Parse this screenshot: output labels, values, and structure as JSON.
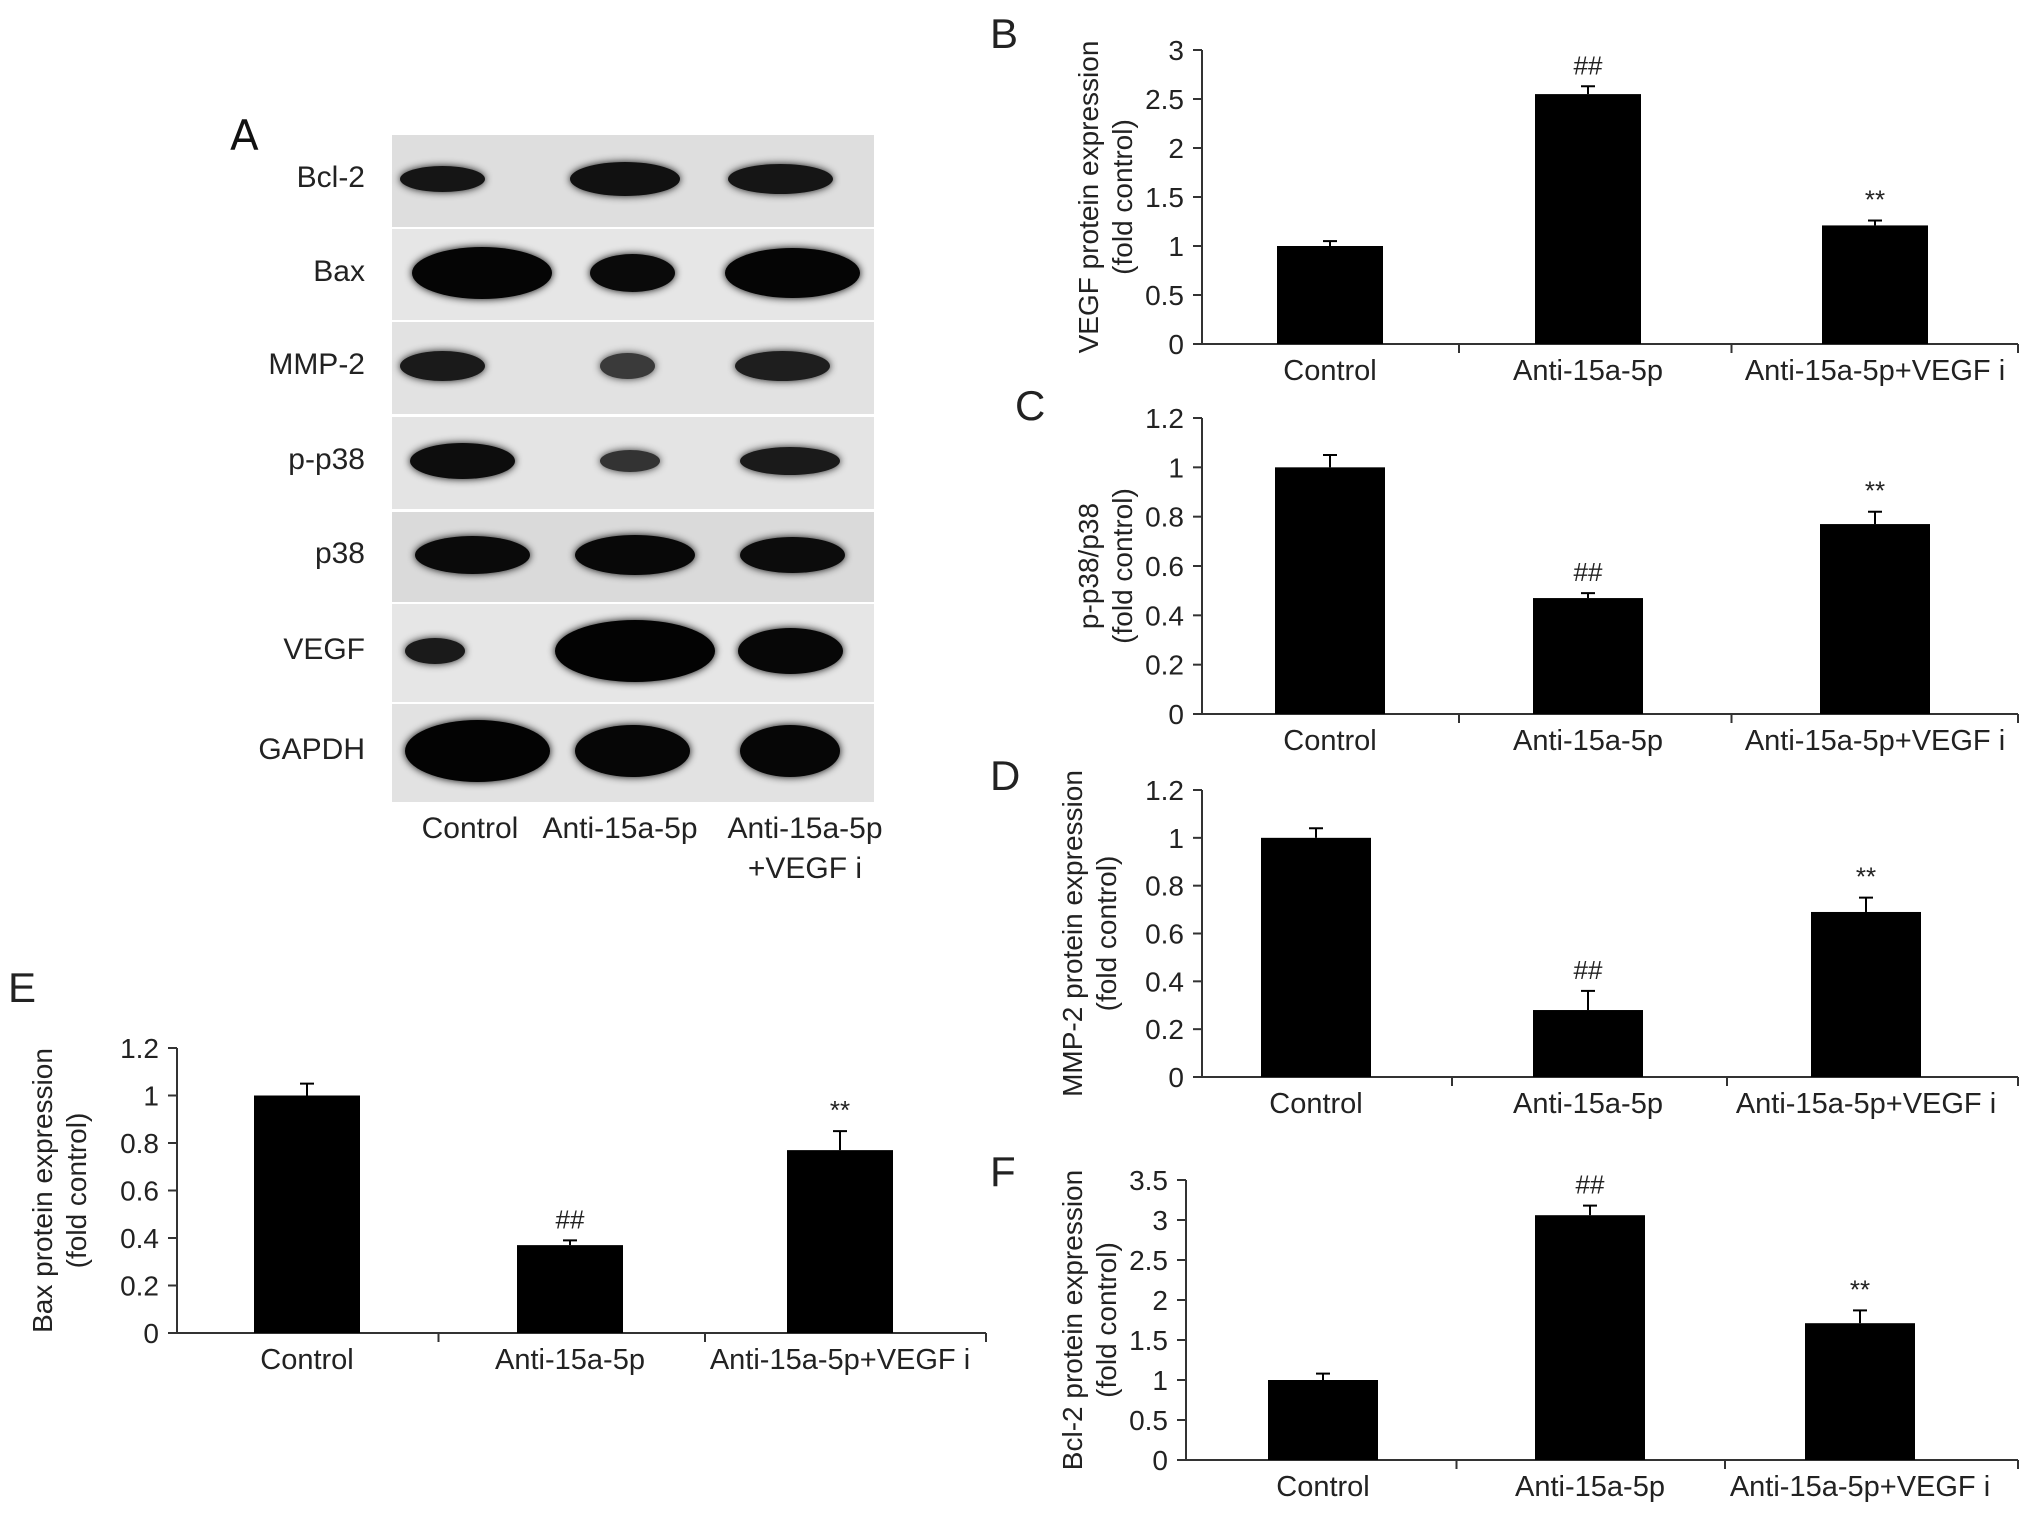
{
  "panel_a": {
    "letter": "A",
    "rows": [
      "Bcl-2",
      "Bax",
      "MMP-2",
      "p-p38",
      "p38",
      "VEGF",
      "GAPDH"
    ],
    "lanes": [
      "Control",
      "Anti-15a-5p",
      "Anti-15a-5p",
      "+VEGF i"
    ]
  },
  "chart_data": [
    {
      "panel": "B",
      "type": "bar",
      "categories": [
        "Control",
        "Anti-15a-5p",
        "Anti-15a-5p+VEGF i"
      ],
      "values": [
        1.0,
        2.55,
        1.21
      ],
      "errors": [
        0.05,
        0.08,
        0.05
      ],
      "annotations": [
        "",
        "##",
        "**"
      ],
      "ylabel": [
        "VEGF protein expression",
        "(fold control)"
      ],
      "yticks": [
        "0",
        "0.5",
        "1",
        "1.5",
        "2",
        "2.5",
        "3"
      ],
      "ylim": [
        0,
        3
      ]
    },
    {
      "panel": "C",
      "type": "bar",
      "categories": [
        "Control",
        "Anti-15a-5p",
        "Anti-15a-5p+VEGF i"
      ],
      "values": [
        1.0,
        0.47,
        0.77
      ],
      "errors": [
        0.05,
        0.02,
        0.05
      ],
      "annotations": [
        "",
        "##",
        "**"
      ],
      "ylabel": [
        "p-p38/p38",
        "(fold control)"
      ],
      "yticks": [
        "0",
        "0.2",
        "0.4",
        "0.6",
        "0.8",
        "1",
        "1.2"
      ],
      "ylim": [
        0,
        1.2
      ]
    },
    {
      "panel": "D",
      "type": "bar",
      "categories": [
        "Control",
        "Anti-15a-5p",
        "Anti-15a-5p+VEGF i"
      ],
      "values": [
        1.0,
        0.28,
        0.69
      ],
      "errors": [
        0.04,
        0.08,
        0.06
      ],
      "annotations": [
        "",
        "##",
        "**"
      ],
      "ylabel": [
        "MMP-2 protein expression",
        "(fold control)"
      ],
      "yticks": [
        "0",
        "0.2",
        "0.4",
        "0.6",
        "0.8",
        "1",
        "1.2"
      ],
      "ylim": [
        0,
        1.2
      ]
    },
    {
      "panel": "E",
      "type": "bar",
      "categories": [
        "Control",
        "Anti-15a-5p",
        "Anti-15a-5p+VEGF i"
      ],
      "values": [
        1.0,
        0.37,
        0.77
      ],
      "errors": [
        0.05,
        0.02,
        0.08
      ],
      "annotations": [
        "",
        "##",
        "**"
      ],
      "ylabel": [
        "Bax protein expression",
        "(fold control)"
      ],
      "yticks": [
        "0",
        "0.2",
        "0.4",
        "0.6",
        "0.8",
        "1",
        "1.2"
      ],
      "ylim": [
        0,
        1.2
      ]
    },
    {
      "panel": "F",
      "type": "bar",
      "categories": [
        "Control",
        "Anti-15a-5p",
        "Anti-15a-5p+VEGF i"
      ],
      "values": [
        1.0,
        3.06,
        1.71
      ],
      "errors": [
        0.08,
        0.12,
        0.16
      ],
      "annotations": [
        "",
        "##",
        "**"
      ],
      "ylabel": [
        "Bcl-2 protein expression",
        "(fold control)"
      ],
      "yticks": [
        "0",
        "0.5",
        "1",
        "1.5",
        "2",
        "2.5",
        "3",
        "3.5"
      ],
      "ylim": [
        0,
        3.5
      ]
    }
  ]
}
